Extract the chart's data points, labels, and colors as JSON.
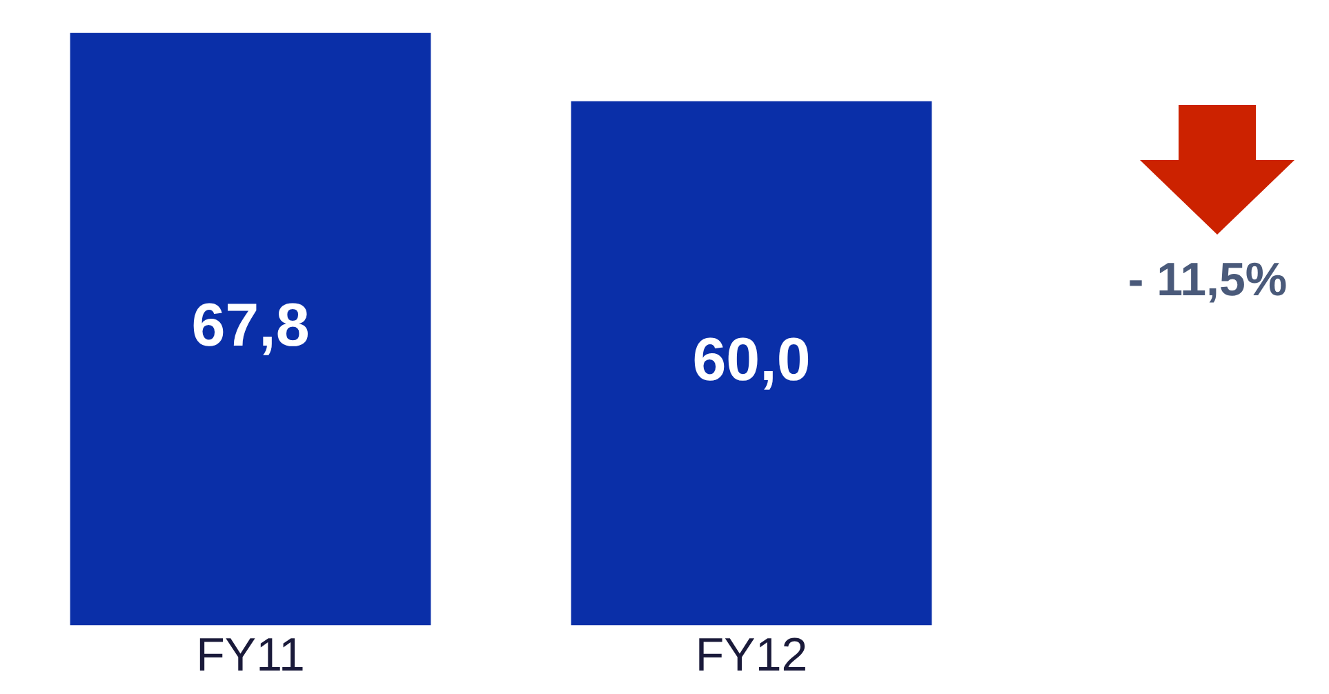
{
  "chart_data": {
    "type": "bar",
    "categories": [
      "FY11",
      "FY12"
    ],
    "values": [
      67.8,
      60.0
    ],
    "value_labels": [
      "67,8",
      "60,0"
    ],
    "color": "#0a2fa8",
    "annotations": [
      "- 11,5%"
    ],
    "grid": false,
    "legend": false
  }
}
